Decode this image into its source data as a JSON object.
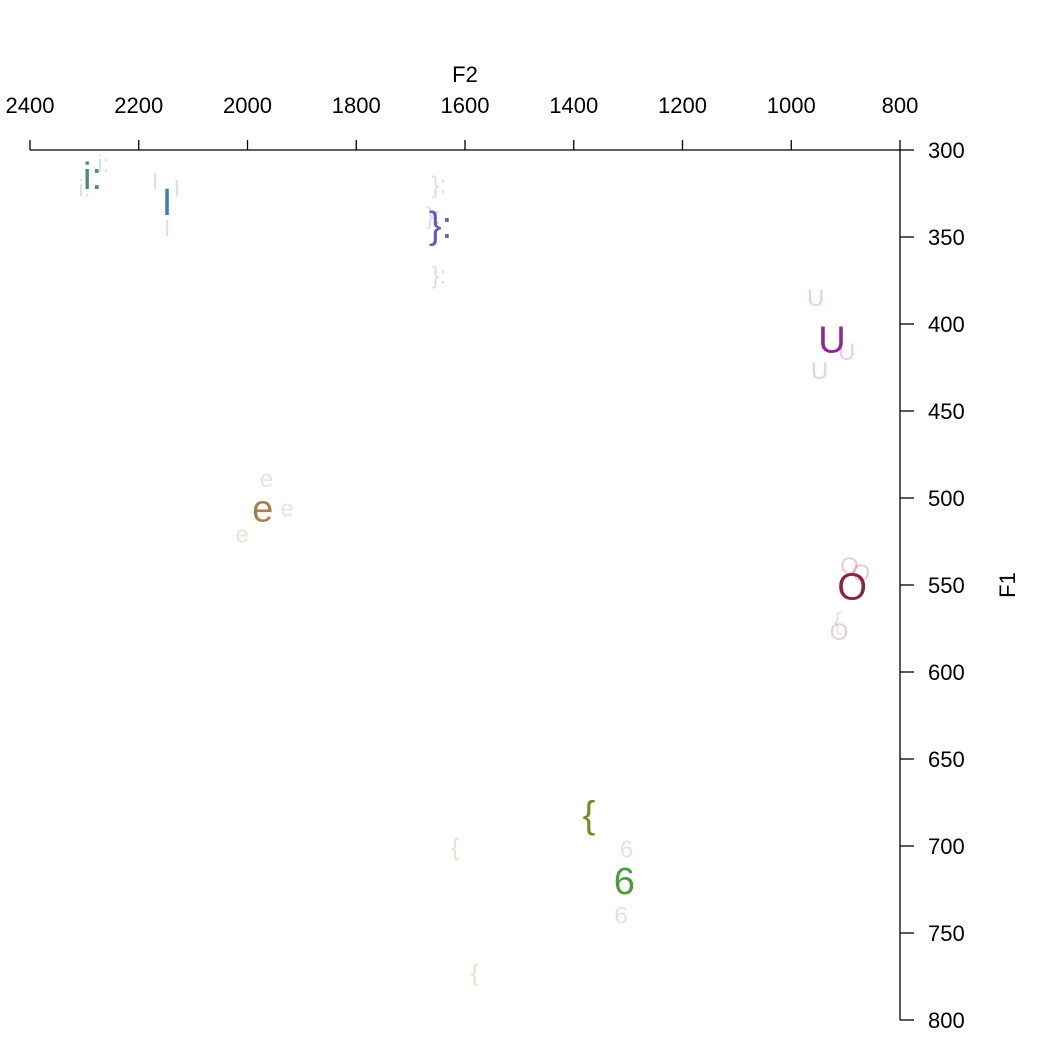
{
  "chart_data": {
    "type": "scatter",
    "title": "",
    "xlabel": "F2",
    "ylabel": "F1",
    "x_axis_position": "top",
    "y_axis_position": "right",
    "x_reversed": true,
    "y_reversed": true,
    "xlim": [
      2400,
      800
    ],
    "ylim": [
      300,
      800
    ],
    "x_ticks": [
      2400,
      2200,
      2000,
      1800,
      1600,
      1400,
      1200,
      1000,
      800
    ],
    "y_ticks": [
      300,
      350,
      400,
      450,
      500,
      550,
      600,
      650,
      700,
      750,
      800
    ],
    "grid": false,
    "legend": "none",
    "series": [
      {
        "name": "i:",
        "color": "#4a8a80",
        "mean": {
          "x": 2285,
          "y": 315
        },
        "tokens": [
          {
            "label": "i:",
            "x": 2300,
            "y": 322
          },
          {
            "label": "i:",
            "x": 2265,
            "y": 308
          }
        ]
      },
      {
        "name": "I",
        "color": "#3e7eb8",
        "mean": {
          "x": 2148,
          "y": 330
        },
        "tokens": [
          {
            "label": "I",
            "x": 2170,
            "y": 318
          },
          {
            "label": "I",
            "x": 2130,
            "y": 322
          },
          {
            "label": "I",
            "x": 2148,
            "y": 345
          }
        ]
      },
      {
        "name": "}:",
        "color": "#6a55c4",
        "mean": {
          "x": 1645,
          "y": 343
        },
        "tokens": [
          {
            "label": "}:",
            "x": 1648,
            "y": 320
          },
          {
            "label": "}:",
            "x": 1658,
            "y": 338
          },
          {
            "label": "}:",
            "x": 1648,
            "y": 372
          }
        ]
      },
      {
        "name": "U",
        "color": "#9a1f9a",
        "mean": {
          "x": 925,
          "y": 409
        },
        "tokens": [
          {
            "label": "U",
            "x": 955,
            "y": 385
          },
          {
            "label": "U",
            "x": 898,
            "y": 416
          },
          {
            "label": "U",
            "x": 948,
            "y": 427
          }
        ]
      },
      {
        "name": "e",
        "color": "#a87f4d",
        "mean": {
          "x": 1972,
          "y": 506
        },
        "tokens": [
          {
            "label": "e",
            "x": 1965,
            "y": 489
          },
          {
            "label": "e",
            "x": 1927,
            "y": 506
          },
          {
            "label": "e",
            "x": 2010,
            "y": 521
          }
        ]
      },
      {
        "name": "O",
        "color": "#8e2148",
        "mean": {
          "x": 888,
          "y": 551
        },
        "tokens": [
          {
            "label": "O",
            "x": 893,
            "y": 539
          },
          {
            "label": "O",
            "x": 872,
            "y": 543
          },
          {
            "label": "O",
            "x": 912,
            "y": 577
          }
        ]
      },
      {
        "name": "{",
        "color": "#7a8a1f",
        "mean": {
          "x": 1372,
          "y": 682
        },
        "tokens": [
          {
            "label": "{",
            "x": 1618,
            "y": 701
          },
          {
            "label": "{",
            "x": 1582,
            "y": 773
          },
          {
            "label": "{",
            "x": 915,
            "y": 571
          }
        ]
      },
      {
        "name": "6",
        "color": "#4e9a3e",
        "mean": {
          "x": 1307,
          "y": 720
        },
        "tokens": [
          {
            "label": "6",
            "x": 1303,
            "y": 702
          },
          {
            "label": "6",
            "x": 1313,
            "y": 740
          }
        ]
      }
    ]
  }
}
